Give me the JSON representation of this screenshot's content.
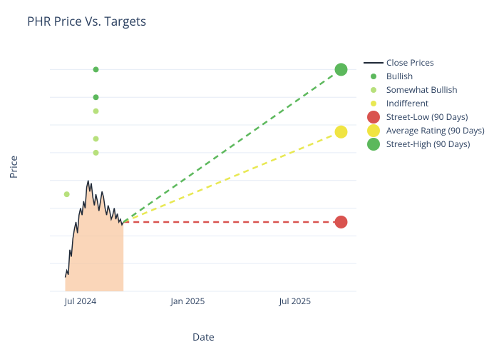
{
  "title": "PHR Price Vs. Targets",
  "ylabel": "Price",
  "xlabel": "Date",
  "colors": {
    "title": "#2a3f5f",
    "grid": "#e5ecf6",
    "zeroline": "#bcc6d4",
    "close_line": "#1f2937",
    "area_fill": "#f8c59b",
    "area_fill_opacity": 0.7,
    "bullish": "#5cb85c",
    "somewhat_bullish": "#b7e07c",
    "indifferent": "#e8e853",
    "street_low": "#d9534f",
    "average_rating": "#f0e442",
    "street_high": "#5cb85c",
    "dash_low": "#d9534f",
    "dash_avg": "#e8e853",
    "dash_high": "#5cb85c",
    "background": "#ffffff"
  },
  "y_axis": {
    "min": 18,
    "max": 35,
    "ticks": [
      18,
      20,
      22,
      24,
      26,
      28,
      30,
      32,
      34
    ]
  },
  "x_axis": {
    "ticks": [
      {
        "label": "Jul 2024",
        "pos": 0.1
      },
      {
        "label": "Jan 2025",
        "pos": 0.45
      },
      {
        "label": "Jul 2025",
        "pos": 0.8
      }
    ],
    "start_pos": 0.05,
    "price_end_pos": 0.24,
    "target_pos": 0.95
  },
  "close_prices": {
    "x_positions": [
      0.05,
      0.055,
      0.06,
      0.065,
      0.07,
      0.075,
      0.08,
      0.085,
      0.09,
      0.095,
      0.1,
      0.105,
      0.11,
      0.115,
      0.12,
      0.125,
      0.13,
      0.135,
      0.14,
      0.145,
      0.15,
      0.155,
      0.16,
      0.165,
      0.17,
      0.175,
      0.18,
      0.185,
      0.19,
      0.195,
      0.2,
      0.205,
      0.21,
      0.215,
      0.22,
      0.225,
      0.23,
      0.235,
      0.24
    ],
    "values": [
      19.0,
      19.5,
      19.2,
      21.0,
      20.5,
      21.8,
      22.5,
      23.0,
      22.2,
      23.5,
      24.0,
      23.5,
      24.5,
      24.0,
      25.5,
      26.0,
      25.2,
      25.8,
      24.8,
      24.2,
      25.0,
      24.5,
      23.8,
      24.5,
      25.2,
      24.8,
      24.0,
      23.5,
      24.2,
      23.8,
      23.2,
      23.5,
      24.0,
      23.2,
      23.6,
      23.0,
      23.2,
      22.8,
      23.0
    ]
  },
  "target_points": {
    "street_low": 23.0,
    "average_rating": 29.5,
    "street_high": 34.0
  },
  "scatter_points": [
    {
      "x": 0.055,
      "y": 25.0,
      "type": "somewhat_bullish"
    },
    {
      "x": 0.15,
      "y": 28.0,
      "type": "somewhat_bullish"
    },
    {
      "x": 0.15,
      "y": 29.0,
      "type": "somewhat_bullish"
    },
    {
      "x": 0.15,
      "y": 31.0,
      "type": "somewhat_bullish"
    },
    {
      "x": 0.15,
      "y": 32.0,
      "type": "bullish"
    },
    {
      "x": 0.15,
      "y": 34.0,
      "type": "bullish"
    }
  ],
  "legend": [
    {
      "label": "Close Prices",
      "type": "line",
      "color_key": "close_line"
    },
    {
      "label": "Bullish",
      "type": "dot-small",
      "color_key": "bullish"
    },
    {
      "label": "Somewhat Bullish",
      "type": "dot-small",
      "color_key": "somewhat_bullish"
    },
    {
      "label": "Indifferent",
      "type": "dot-small",
      "color_key": "indifferent"
    },
    {
      "label": "Street-Low (90 Days)",
      "type": "dot-big",
      "color_key": "street_low"
    },
    {
      "label": "Average Rating (90 Days)",
      "type": "dot-big",
      "color_key": "average_rating"
    },
    {
      "label": "Street-High (90 Days)",
      "type": "dot-big",
      "color_key": "street_high"
    }
  ]
}
